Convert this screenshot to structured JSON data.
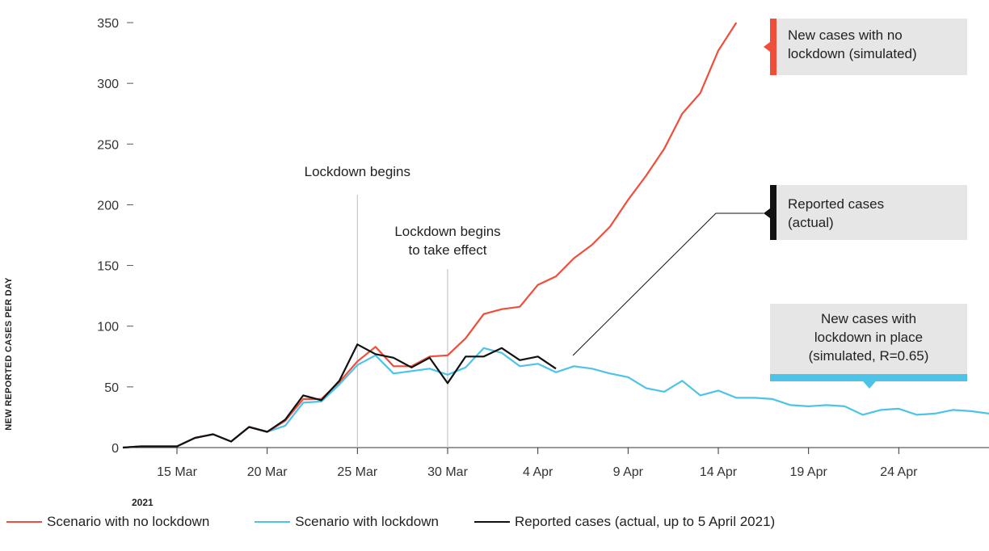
{
  "chart_data": {
    "type": "line",
    "ylabel": "NEW REPORTED CASES PER DAY",
    "ylim": [
      0,
      350
    ],
    "yticks": [
      0,
      50,
      100,
      150,
      200,
      250,
      300,
      350
    ],
    "ytick_labels": [
      "0",
      "50",
      "100",
      "150",
      "200",
      "250",
      "300",
      "350"
    ],
    "xlim": [
      "2021-03-12",
      "2021-04-29"
    ],
    "xticks": [
      "2021-03-15",
      "2021-03-20",
      "2021-03-25",
      "2021-03-30",
      "2021-04-04",
      "2021-04-09",
      "2021-04-14",
      "2021-04-19",
      "2021-04-24"
    ],
    "xtick_labels": [
      "15 Mar",
      "20 Mar",
      "25 Mar",
      "30 Mar",
      "4 Apr",
      "9 Apr",
      "14 Apr",
      "19 Apr",
      "24 Apr"
    ],
    "year_label": "2021",
    "grid": false,
    "series": [
      {
        "name": "Scenario with no lockdown",
        "color": "#ef4e3a",
        "x": [
          "2021-03-12",
          "2021-03-13",
          "2021-03-14",
          "2021-03-15",
          "2021-03-16",
          "2021-03-17",
          "2021-03-18",
          "2021-03-19",
          "2021-03-20",
          "2021-03-21",
          "2021-03-22",
          "2021-03-23",
          "2021-03-24",
          "2021-03-25",
          "2021-03-26",
          "2021-03-27",
          "2021-03-28",
          "2021-03-29",
          "2021-03-30",
          "2021-03-31",
          "2021-04-01",
          "2021-04-02",
          "2021-04-03",
          "2021-04-04",
          "2021-04-05",
          "2021-04-06",
          "2021-04-07",
          "2021-04-08",
          "2021-04-09",
          "2021-04-10",
          "2021-04-11",
          "2021-04-12",
          "2021-04-13",
          "2021-04-14",
          "2021-04-15"
        ],
        "values": [
          0,
          1,
          1,
          1,
          8,
          11,
          5,
          17,
          13,
          22,
          40,
          40,
          54,
          71,
          83,
          67,
          67,
          75,
          76,
          90,
          110,
          114,
          116,
          134,
          141,
          156,
          167,
          182,
          204,
          224,
          246,
          275,
          292,
          327,
          350
        ]
      },
      {
        "name": "Scenario with lockdown",
        "color": "#4ec3e8",
        "x": [
          "2021-03-12",
          "2021-03-13",
          "2021-03-14",
          "2021-03-15",
          "2021-03-16",
          "2021-03-17",
          "2021-03-18",
          "2021-03-19",
          "2021-03-20",
          "2021-03-21",
          "2021-03-22",
          "2021-03-23",
          "2021-03-24",
          "2021-03-25",
          "2021-03-26",
          "2021-03-27",
          "2021-03-28",
          "2021-03-29",
          "2021-03-30",
          "2021-03-31",
          "2021-04-01",
          "2021-04-02",
          "2021-04-03",
          "2021-04-04",
          "2021-04-05",
          "2021-04-06",
          "2021-04-07",
          "2021-04-08",
          "2021-04-09",
          "2021-04-10",
          "2021-04-11",
          "2021-04-12",
          "2021-04-13",
          "2021-04-14",
          "2021-04-15",
          "2021-04-16",
          "2021-04-17",
          "2021-04-18",
          "2021-04-19",
          "2021-04-20",
          "2021-04-21",
          "2021-04-22",
          "2021-04-23",
          "2021-04-24",
          "2021-04-25",
          "2021-04-26",
          "2021-04-27",
          "2021-04-28",
          "2021-04-29"
        ],
        "values": [
          0,
          1,
          1,
          1,
          8,
          11,
          5,
          17,
          13,
          18,
          37,
          38,
          52,
          68,
          76,
          61,
          63,
          65,
          60,
          66,
          82,
          78,
          67,
          69,
          62,
          67,
          65,
          61,
          58,
          49,
          46,
          55,
          43,
          47,
          41,
          41,
          40,
          35,
          34,
          35,
          34,
          27,
          31,
          32,
          27,
          28,
          31,
          30,
          28
        ]
      },
      {
        "name": "Reported cases (actual, up to 5 April 2021)",
        "color": "#111111",
        "x": [
          "2021-03-12",
          "2021-03-13",
          "2021-03-14",
          "2021-03-15",
          "2021-03-16",
          "2021-03-17",
          "2021-03-18",
          "2021-03-19",
          "2021-03-20",
          "2021-03-21",
          "2021-03-22",
          "2021-03-23",
          "2021-03-24",
          "2021-03-25",
          "2021-03-26",
          "2021-03-27",
          "2021-03-28",
          "2021-03-29",
          "2021-03-30",
          "2021-03-31",
          "2021-04-01",
          "2021-04-02",
          "2021-04-03",
          "2021-04-04",
          "2021-04-05"
        ],
        "values": [
          0,
          1,
          1,
          1,
          8,
          11,
          5,
          17,
          13,
          23,
          43,
          39,
          55,
          85,
          77,
          74,
          66,
          74,
          53,
          75,
          75,
          82,
          72,
          75,
          65
        ]
      }
    ],
    "vlines": [
      {
        "x": "2021-03-25",
        "label": "Lockdown begins"
      },
      {
        "x": "2021-03-30",
        "label_lines": [
          "Lockdown begins",
          "to take effect"
        ]
      }
    ],
    "annotations": [
      {
        "series": 0,
        "color": "#ef4e3a",
        "lines": [
          "New cases with no",
          "lockdown (simulated)"
        ]
      },
      {
        "series": 2,
        "color": "#111111",
        "lines": [
          "Reported cases",
          "(actual)"
        ]
      },
      {
        "series": 1,
        "color": "#4ec3e8",
        "lines": [
          "New cases with",
          "lockdown in place",
          "(simulated, R=0.65)"
        ]
      }
    ],
    "legend_position": "bottom-left"
  }
}
